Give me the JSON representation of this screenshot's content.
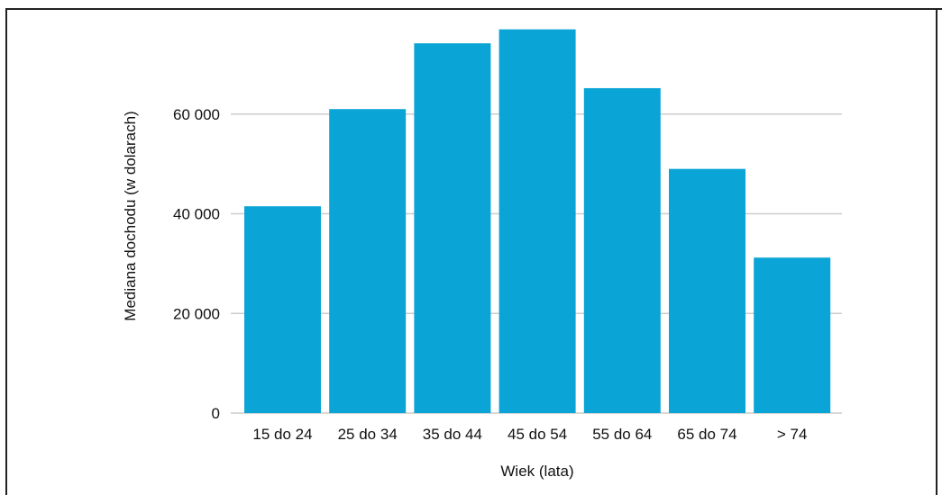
{
  "chart_data": {
    "type": "bar",
    "title": "",
    "xlabel": "Wiek (lata)",
    "ylabel": "Mediana dochodu (w dolarach)",
    "categories": [
      "15 do 24",
      "25 do 34",
      "35 do 44",
      "45 do 54",
      "55 do 64",
      "65 do 74",
      "> 74"
    ],
    "values": [
      41500,
      61000,
      74200,
      77000,
      65200,
      49000,
      31200
    ],
    "ylim": [
      0,
      80000
    ],
    "yticks": [
      0,
      20000,
      40000,
      60000
    ],
    "ytick_labels": [
      "0",
      "20 000",
      "40 000",
      "60 000"
    ],
    "grid": true,
    "bar_color": "#0aa5d6",
    "grid_color": "#cccccc"
  }
}
